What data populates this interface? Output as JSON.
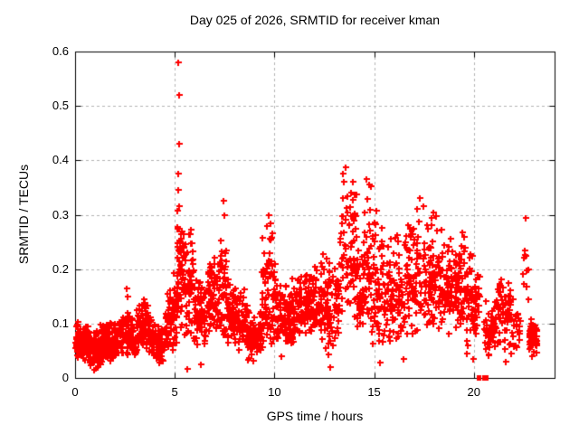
{
  "chart_data": {
    "type": "scatter",
    "title": "Day 025 of 2026, SRMTID for receiver kman",
    "xlabel": "GPS time / hours",
    "ylabel": "SRMTID / TECUs",
    "xlim": [
      0,
      24.05
    ],
    "ylim": [
      0,
      0.6
    ],
    "xticks": [
      0,
      5,
      10,
      15,
      20
    ],
    "xtick_labels": [
      "0",
      "5",
      "10",
      "15",
      "20"
    ],
    "yticks": [
      0,
      0.1,
      0.2,
      0.3,
      0.4,
      0.5,
      0.6
    ],
    "ytick_labels": [
      "0",
      "0.1",
      "0.2",
      "0.3",
      "0.4",
      "0.5",
      "0.6"
    ],
    "grid": true,
    "legend": "none",
    "marker": "plus",
    "marker_color": "#ff0000",
    "grid_color": "#b4b4b4",
    "border_color": "#000000",
    "background_color": "#ffffff",
    "clusters": [
      {
        "t0": 0.0,
        "t1": 0.7,
        "n": 100,
        "lo": 0.03,
        "hi": 0.11
      },
      {
        "t0": 0.7,
        "t1": 1.35,
        "n": 100,
        "lo": 0.02,
        "hi": 0.1
      },
      {
        "t0": 1.35,
        "t1": 2.2,
        "n": 110,
        "lo": 0.03,
        "hi": 0.11
      },
      {
        "t0": 2.2,
        "t1": 2.85,
        "n": 75,
        "lo": 0.04,
        "hi": 0.13
      },
      {
        "t0": 2.85,
        "t1": 3.1,
        "n": 35,
        "lo": 0.03,
        "hi": 0.1
      },
      {
        "t0": 3.1,
        "t1": 3.65,
        "n": 65,
        "lo": 0.05,
        "hi": 0.155
      },
      {
        "t0": 3.65,
        "t1": 4.05,
        "n": 45,
        "lo": 0.04,
        "hi": 0.12
      },
      {
        "t0": 4.05,
        "t1": 4.5,
        "n": 45,
        "lo": 0.03,
        "hi": 0.095
      },
      {
        "t0": 4.5,
        "t1": 5.1,
        "n": 75,
        "lo": 0.05,
        "hi": 0.2
      },
      {
        "t0": 5.1,
        "t1": 5.45,
        "n": 50,
        "lo": 0.08,
        "hi": 0.35
      },
      {
        "t0": 5.45,
        "t1": 5.95,
        "n": 55,
        "lo": 0.06,
        "hi": 0.29
      },
      {
        "t0": 5.95,
        "t1": 6.6,
        "n": 70,
        "lo": 0.05,
        "hi": 0.19
      },
      {
        "t0": 6.6,
        "t1": 7.25,
        "n": 70,
        "lo": 0.08,
        "hi": 0.23
      },
      {
        "t0": 7.25,
        "t1": 7.65,
        "n": 45,
        "lo": 0.06,
        "hi": 0.3
      },
      {
        "t0": 7.65,
        "t1": 8.65,
        "n": 100,
        "lo": 0.05,
        "hi": 0.19
      },
      {
        "t0": 8.65,
        "t1": 9.35,
        "n": 70,
        "lo": 0.03,
        "hi": 0.13
      },
      {
        "t0": 9.35,
        "t1": 10.05,
        "n": 85,
        "lo": 0.05,
        "hi": 0.29
      },
      {
        "t0": 10.05,
        "t1": 11.0,
        "n": 100,
        "lo": 0.06,
        "hi": 0.19
      },
      {
        "t0": 11.0,
        "t1": 12.35,
        "n": 130,
        "lo": 0.08,
        "hi": 0.21
      },
      {
        "t0": 12.35,
        "t1": 13.25,
        "n": 95,
        "lo": 0.04,
        "hi": 0.24
      },
      {
        "t0": 13.25,
        "t1": 14.15,
        "n": 80,
        "lo": 0.1,
        "hi": 0.385
      },
      {
        "t0": 14.15,
        "t1": 14.45,
        "n": 35,
        "lo": 0.08,
        "hi": 0.24
      },
      {
        "t0": 14.45,
        "t1": 14.85,
        "n": 45,
        "lo": 0.1,
        "hi": 0.37
      },
      {
        "t0": 14.85,
        "t1": 15.65,
        "n": 75,
        "lo": 0.05,
        "hi": 0.31
      },
      {
        "t0": 15.65,
        "t1": 16.55,
        "n": 85,
        "lo": 0.05,
        "hi": 0.28
      },
      {
        "t0": 16.55,
        "t1": 18.35,
        "n": 170,
        "lo": 0.08,
        "hi": 0.33
      },
      {
        "t0": 18.35,
        "t1": 19.55,
        "n": 115,
        "lo": 0.08,
        "hi": 0.28
      },
      {
        "t0": 19.55,
        "t1": 20.3,
        "n": 70,
        "lo": 0.04,
        "hi": 0.26
      },
      {
        "t0": 20.5,
        "t1": 21.05,
        "n": 55,
        "lo": 0.04,
        "hi": 0.16
      },
      {
        "t0": 21.05,
        "t1": 21.85,
        "n": 65,
        "lo": 0.05,
        "hi": 0.2
      },
      {
        "t0": 21.85,
        "t1": 22.35,
        "n": 25,
        "lo": 0.04,
        "hi": 0.15
      },
      {
        "t0": 22.45,
        "t1": 22.75,
        "n": 10,
        "lo": 0.13,
        "hi": 0.3
      },
      {
        "t0": 22.75,
        "t1": 23.15,
        "n": 55,
        "lo": 0.04,
        "hi": 0.12
      }
    ],
    "outliers_high": [
      [
        5.18,
        0.58
      ],
      [
        5.2,
        0.52
      ],
      [
        5.21,
        0.43
      ],
      [
        5.19,
        0.375
      ],
      [
        5.16,
        0.345
      ],
      [
        5.24,
        0.315
      ],
      [
        2.6,
        0.165
      ],
      [
        2.61,
        0.15
      ],
      [
        7.45,
        0.325
      ],
      [
        7.47,
        0.3
      ],
      [
        9.72,
        0.3
      ],
      [
        9.78,
        0.285
      ],
      [
        13.55,
        0.387
      ],
      [
        13.45,
        0.375
      ],
      [
        13.95,
        0.36
      ],
      [
        14.62,
        0.365
      ],
      [
        17.3,
        0.33
      ],
      [
        22.6,
        0.295
      ]
    ],
    "outliers_low": [
      [
        0.95,
        0.015
      ],
      [
        1.05,
        0.018
      ],
      [
        4.2,
        0.028
      ],
      [
        5.64,
        0.017
      ],
      [
        6.3,
        0.025
      ],
      [
        10.35,
        0.04
      ],
      [
        12.8,
        0.02
      ],
      [
        15.3,
        0.028
      ],
      [
        16.45,
        0.035
      ],
      [
        19.95,
        0.035
      ],
      [
        21.6,
        0.03
      ],
      [
        22.9,
        0.04
      ]
    ],
    "axis_boxes": [
      {
        "t0": 20.17,
        "t1": 20.36
      },
      {
        "t0": 20.42,
        "t1": 20.73
      }
    ]
  }
}
